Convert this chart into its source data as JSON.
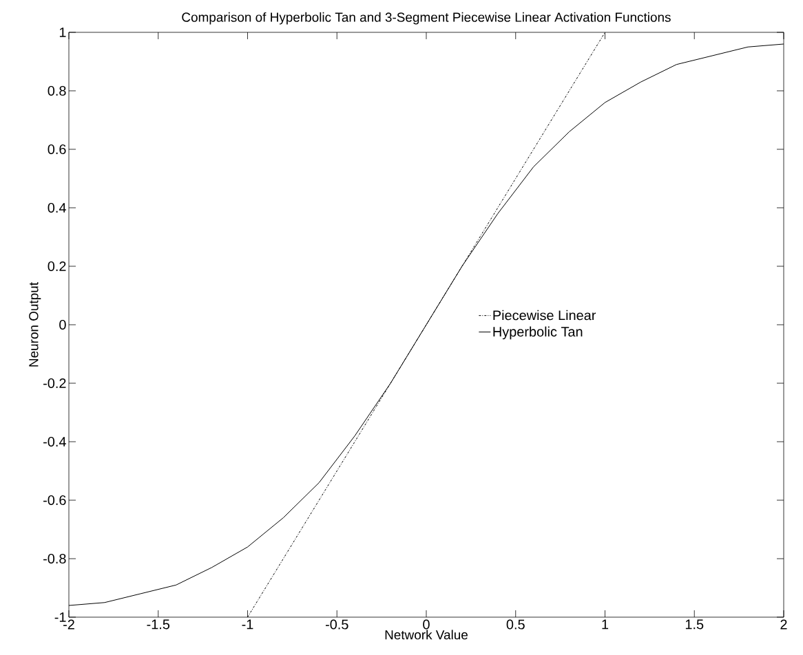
{
  "chart_data": {
    "type": "line",
    "title": "Comparison of Hyperbolic Tan and 3-Segment Piecewise Linear Activation Functions",
    "xlabel": "Network Value",
    "ylabel": "Neuron Output",
    "xlim": [
      -2,
      2
    ],
    "ylim": [
      -1,
      1
    ],
    "xticks": [
      -2,
      -1.5,
      -1,
      -0.5,
      0,
      0.5,
      1,
      1.5,
      2
    ],
    "yticks": [
      -1,
      -0.8,
      -0.6,
      -0.4,
      -0.2,
      0,
      0.2,
      0.4,
      0.6,
      0.8,
      1
    ],
    "grid": false,
    "legend": "right",
    "series": [
      {
        "name": "Piecewise Linear",
        "color": "#000000",
        "line_style": "dashdot",
        "x": [
          -1,
          1
        ],
        "values": [
          -1,
          1
        ]
      },
      {
        "name": "Hyperbolic Tan",
        "color": "#000000",
        "line_style": "solid",
        "x": [
          -2,
          -1.8,
          -1.6,
          -1.4,
          -1.2,
          -1,
          -0.8,
          -0.6,
          -0.4,
          -0.2,
          0,
          0.2,
          0.4,
          0.6,
          0.8,
          1,
          1.2,
          1.4,
          1.6,
          1.8,
          2
        ],
        "values": [
          -0.96,
          -0.95,
          -0.92,
          -0.89,
          -0.83,
          -0.76,
          -0.66,
          -0.54,
          -0.38,
          -0.2,
          0,
          0.2,
          0.38,
          0.54,
          0.66,
          0.76,
          0.83,
          0.89,
          0.92,
          0.95,
          0.96
        ]
      }
    ]
  }
}
